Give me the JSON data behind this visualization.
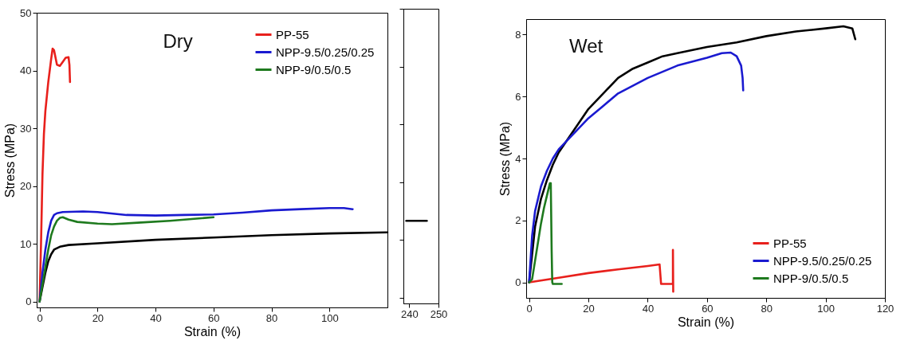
{
  "chart_data": [
    {
      "type": "line",
      "ylabel": "Stress (MPa)",
      "xlabel": "Strain (%)",
      "annotations": [
        "Dry"
      ],
      "xlim": [
        -1,
        120
      ],
      "xticks": [
        0,
        20,
        40,
        60,
        80,
        100
      ],
      "ylim": [
        -1,
        50
      ],
      "yticks": [
        0,
        10,
        20,
        30,
        40,
        50
      ],
      "legend": "top right",
      "grid": false,
      "marker": "none",
      "line_style": "solid",
      "series": [
        {
          "color": "#000000",
          "x": [
            0,
            1,
            2,
            3,
            4,
            5,
            7,
            10,
            20,
            40,
            60,
            80,
            100,
            120
          ],
          "values": [
            0,
            2.5,
            5,
            7,
            8.2,
            9,
            9.5,
            9.8,
            10.1,
            10.7,
            11.1,
            11.5,
            11.8,
            12
          ]
        },
        {
          "name": "PP-55",
          "color": "#e8201c",
          "x": [
            0,
            0.5,
            1,
            1.5,
            2,
            3,
            4,
            4.5,
            5,
            6,
            7,
            8,
            9,
            10,
            10.3,
            10.5
          ],
          "values": [
            0,
            10,
            22,
            29,
            33,
            38,
            42,
            43.8,
            43.5,
            41,
            40.8,
            41.5,
            42.2,
            42.3,
            41,
            38
          ]
        },
        {
          "name": "NPP-9.5/0.25/0.25",
          "color": "#1a1ad0",
          "x": [
            0,
            1,
            2,
            3,
            4,
            5,
            6,
            8,
            15,
            20,
            30,
            40,
            50,
            60,
            70,
            80,
            90,
            100,
            105,
            108
          ],
          "values": [
            0,
            5,
            9,
            12,
            14,
            15,
            15.3,
            15.5,
            15.6,
            15.5,
            15,
            14.9,
            15,
            15.1,
            15.4,
            15.8,
            16,
            16.2,
            16.2,
            16
          ]
        },
        {
          "name": "NPP-9/0.5/0.5",
          "color": "#1e7a1e",
          "x": [
            0,
            1,
            2,
            3,
            4,
            5,
            6,
            7,
            8,
            10,
            13,
            20,
            25,
            35,
            45,
            55,
            60
          ],
          "values": [
            0,
            3,
            6,
            9,
            11.5,
            13,
            14,
            14.5,
            14.6,
            14.2,
            13.8,
            13.5,
            13.4,
            13.7,
            14,
            14.4,
            14.6
          ]
        }
      ]
    },
    {
      "type": "line",
      "xlim": [
        238,
        250
      ],
      "xticks": [
        240,
        250
      ],
      "ylim": [
        -1,
        50
      ],
      "yticks": [
        {
          "value": 0,
          "label": null
        },
        {
          "value": 10,
          "label": null
        },
        {
          "value": 20,
          "label": null
        },
        {
          "value": 30,
          "label": null
        },
        {
          "value": 40,
          "label": null
        },
        {
          "value": 50,
          "label": null
        }
      ],
      "tick_labels": "x",
      "grid": false,
      "marker": "none",
      "line_style": "solid",
      "series": [
        {
          "color": "#000000",
          "x": [
            239,
            246
          ],
          "values": [
            13.3,
            13.3
          ]
        }
      ]
    },
    {
      "type": "line",
      "ylabel": "Stress (MPa)",
      "xlabel": "Strain (%)",
      "annotations": [
        "Wet"
      ],
      "xlim": [
        -1,
        120
      ],
      "xticks": [
        0,
        20,
        40,
        60,
        80,
        100,
        120
      ],
      "ylim": [
        -0.5,
        8.5
      ],
      "yticks": [
        0,
        2,
        4,
        6,
        8
      ],
      "legend": "bottom right",
      "grid": false,
      "marker": "none",
      "line_style": "solid",
      "series": [
        {
          "color": "#000000",
          "x": [
            0,
            2,
            4,
            6,
            8,
            10,
            15,
            20,
            25,
            30,
            35,
            40,
            45,
            50,
            60,
            70,
            80,
            90,
            100,
            106,
            109,
            110
          ],
          "values": [
            0,
            1.8,
            2.7,
            3.3,
            3.8,
            4.2,
            4.9,
            5.6,
            6.1,
            6.6,
            6.9,
            7.1,
            7.3,
            7.4,
            7.6,
            7.75,
            7.95,
            8.1,
            8.2,
            8.27,
            8.2,
            7.85
          ]
        },
        {
          "name": "PP-55",
          "color": "#e8201c",
          "x": [
            0,
            10,
            20,
            30,
            40,
            44,
            44.5,
            48.5,
            48.5,
            48.6
          ],
          "values": [
            0,
            0.15,
            0.3,
            0.42,
            0.53,
            0.58,
            -0.05,
            -0.05,
            1.05,
            -0.3
          ]
        },
        {
          "name": "NPP-9.5/0.25/0.25",
          "color": "#1a1ad0",
          "x": [
            0,
            1,
            2,
            4,
            6,
            8,
            10,
            15,
            20,
            25,
            30,
            40,
            50,
            60,
            65,
            68,
            70,
            71.5,
            72,
            72.2
          ],
          "values": [
            0,
            1.5,
            2.3,
            3.1,
            3.6,
            4,
            4.3,
            4.8,
            5.3,
            5.7,
            6.1,
            6.6,
            7,
            7.25,
            7.4,
            7.42,
            7.3,
            7,
            6.6,
            6.2
          ]
        },
        {
          "name": "NPP-9/0.5/0.5",
          "color": "#1e7a1e",
          "x": [
            0,
            1,
            2,
            3,
            4,
            5,
            6,
            7,
            7.3,
            7.6,
            7.8,
            8,
            11
          ],
          "values": [
            0,
            0.1,
            0.7,
            1.3,
            1.9,
            2.4,
            2.8,
            3.2,
            3.2,
            1,
            0,
            -0.05,
            -0.05
          ]
        }
      ]
    }
  ]
}
